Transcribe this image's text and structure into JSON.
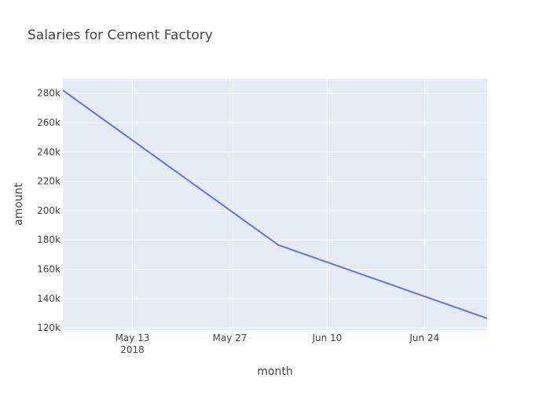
{
  "chart_data": {
    "type": "line",
    "title": "Salaries for Cement Factory",
    "xlabel": "month",
    "ylabel": "amount",
    "x": [
      "2018-05-03",
      "2018-06-03",
      "2018-07-03"
    ],
    "series": [
      {
        "values": [
          282000,
          176500,
          126500
        ],
        "color": "#636efa"
      }
    ],
    "xlim": [
      "2018-05-03",
      "2018-07-03"
    ],
    "ylim": [
      118500,
      290000
    ],
    "x_ticks": [
      {
        "date": "2018-05-13",
        "label": "May 13",
        "sublabel": "2018"
      },
      {
        "date": "2018-05-27",
        "label": "May 27",
        "sublabel": ""
      },
      {
        "date": "2018-06-10",
        "label": "Jun 10",
        "sublabel": ""
      },
      {
        "date": "2018-06-24",
        "label": "Jun 24",
        "sublabel": ""
      }
    ],
    "y_ticks": [
      {
        "value": 120000,
        "label": "120k"
      },
      {
        "value": 140000,
        "label": "140k"
      },
      {
        "value": 160000,
        "label": "160k"
      },
      {
        "value": 180000,
        "label": "180k"
      },
      {
        "value": 200000,
        "label": "200k"
      },
      {
        "value": 220000,
        "label": "220k"
      },
      {
        "value": 240000,
        "label": "240k"
      },
      {
        "value": 260000,
        "label": "260k"
      },
      {
        "value": 280000,
        "label": "280k"
      }
    ],
    "grid": true,
    "colors": {
      "plot_bg": "#e5ecf6",
      "grid": "#ffffff",
      "text": "#444444"
    }
  }
}
